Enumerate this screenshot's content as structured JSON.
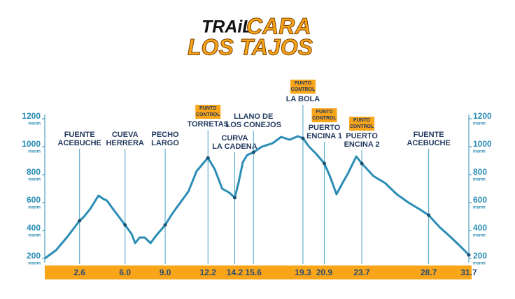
{
  "chart_data": {
    "type": "line",
    "title": [
      "TRAiL",
      "CARA",
      "LOS TAJOS"
    ],
    "title_colors": [
      "#111111",
      "#f9a51a"
    ],
    "x": [
      0,
      0.85,
      1.64,
      2.6,
      2.94,
      3.43,
      4.01,
      4.4,
      4.64,
      5.13,
      5.61,
      6.0,
      6.49,
      6.76,
      7.09,
      7.47,
      7.91,
      8.29,
      9.0,
      9.56,
      10.13,
      10.74,
      11.35,
      11.92,
      12.2,
      12.7,
      13.26,
      13.81,
      14.2,
      14.48,
      14.81,
      15.13,
      15.6,
      16.23,
      17.04,
      17.67,
      18.3,
      18.92,
      19.3,
      19.76,
      20.28,
      20.9,
      21.31,
      21.81,
      22.26,
      22.67,
      23.08,
      23.29,
      23.7,
      24.57,
      25.44,
      26.31,
      27.19,
      28.06,
      28.7,
      29.51,
      30.38,
      31.25,
      31.7
    ],
    "series": [
      {
        "color": "#2a8db5",
        "values": [
          200,
          260,
          350,
          470,
          500,
          560,
          650,
          625,
          615,
          550,
          490,
          440,
          375,
          310,
          350,
          350,
          310,
          360,
          440,
          525,
          600,
          680,
          825,
          890,
          920,
          840,
          700,
          670,
          635,
          740,
          890,
          940,
          960,
          1000,
          1025,
          1070,
          1050,
          1075,
          1060,
          1000,
          950,
          880,
          790,
          660,
          740,
          810,
          890,
          930,
          880,
          790,
          740,
          660,
          600,
          550,
          510,
          425,
          350,
          270,
          225
        ]
      }
    ],
    "xlim": [
      0,
      31.7
    ],
    "xticks": [
      2.6,
      {
        "value": 6,
        "label": "6.0"
      },
      {
        "value": 9,
        "label": "9.0"
      },
      12.2,
      14.2,
      15.6,
      19.3,
      20.9,
      23.7,
      28.7,
      31.7
    ],
    "ylim": [
      200,
      1200
    ],
    "yticks": [
      200,
      400,
      600,
      800,
      1000,
      1200
    ],
    "y_unit": "msnm",
    "bar_color": "#f9a51a",
    "checkpoint_label": [
      "PUNTO",
      "CONTROL"
    ],
    "waypoints": [
      {
        "name": [
          "FUENTE",
          "ACEBUCHE"
        ],
        "checkpoint": false
      },
      {
        "name": [
          "CUEVA",
          "HERRERA"
        ],
        "checkpoint": false
      },
      {
        "name": [
          "PECHO",
          "LARGO"
        ],
        "checkpoint": false
      },
      {
        "name": [
          "TORRETAS"
        ],
        "checkpoint": true
      },
      {
        "name": [
          "CURVA",
          "LA CADENA"
        ],
        "checkpoint": false
      },
      {
        "name": [
          "LLANO DE",
          "LOS CONEJOS"
        ],
        "checkpoint": false
      },
      {
        "name": [
          "LA BOLA"
        ],
        "checkpoint": true
      },
      {
        "name": [
          "PUERTO",
          "ENCINA 1"
        ],
        "checkpoint": true
      },
      {
        "name": [
          "PUERTO",
          "ENCINA 2"
        ],
        "checkpoint": true
      },
      {
        "name": [
          "FUENTE",
          "ACEBUCHE"
        ],
        "checkpoint": false
      },
      null
    ]
  }
}
